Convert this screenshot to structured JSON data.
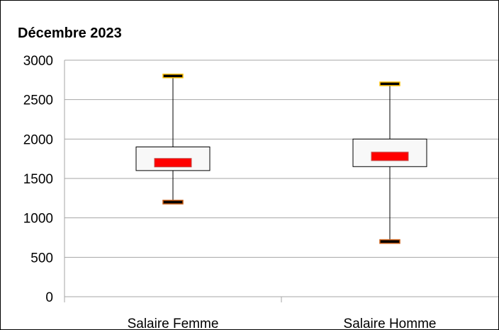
{
  "chart_data": {
    "type": "boxplot",
    "title": "Décembre 2023",
    "xlabel": "",
    "ylabel": "",
    "ylim": [
      0,
      3000
    ],
    "yticks": [
      0,
      500,
      1000,
      1500,
      2000,
      2500,
      3000
    ],
    "grid": true,
    "legend": "none",
    "categories": [
      "Salaire Femme",
      "Salaire Homme"
    ],
    "series": [
      {
        "min": 1200,
        "q1": 1600,
        "median": 1700,
        "q3": 1900,
        "max": 2800
      },
      {
        "min": 700,
        "q1": 1650,
        "median": 1780,
        "q3": 2000,
        "max": 2700
      }
    ],
    "colors": {
      "box_fill": "#f8f8f8",
      "median": "#ff0000",
      "whisker_cap": "#ffc000",
      "grid": "#a6a6a6",
      "frame": "#000000"
    }
  }
}
